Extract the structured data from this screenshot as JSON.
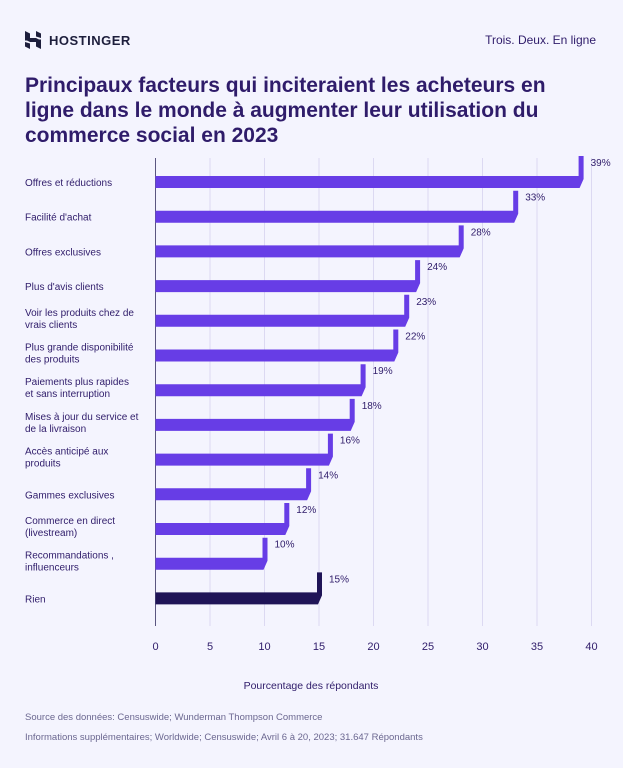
{
  "header": {
    "brand": "HOSTINGER",
    "tagline": "Trois. Deux. En ligne"
  },
  "colors": {
    "bar": "#673de6",
    "highlight": "#1f1457",
    "grid": "#dcd9f2",
    "text": "#2f1c6a"
  },
  "chart_data": {
    "type": "bar",
    "orientation": "horizontal",
    "title": "Principaux facteurs qui inciteraient les acheteurs en ligne dans le monde à augmenter leur utilisation du commerce social en 2023",
    "xlabel": "Pourcentage des répondants",
    "xlim": [
      0,
      40
    ],
    "xticks": [
      "0",
      "5",
      "10",
      "15",
      "20",
      "25",
      "30",
      "35",
      "40"
    ],
    "grid": true,
    "categories": [
      [
        "Offres et réductions"
      ],
      [
        "Facilité d'achat"
      ],
      [
        "Offres exclusives"
      ],
      [
        "Plus d'avis clients"
      ],
      [
        "Voir les produits chez de",
        "vrais clients"
      ],
      [
        "Plus grande disponibilité",
        "des produits"
      ],
      [
        "Paiements plus rapides",
        "et sans interruption"
      ],
      [
        "Mises à jour du service et",
        "de la livraison"
      ],
      [
        "Accès anticipé aux",
        "produits"
      ],
      [
        "Gammes exclusives"
      ],
      [
        "Commerce en direct",
        "(livestream)"
      ],
      [
        "Recommandations ,",
        "influenceurs"
      ],
      [
        "Rien"
      ]
    ],
    "values": [
      39,
      33,
      28,
      24,
      23,
      22,
      19,
      18,
      16,
      14,
      12,
      10,
      15
    ],
    "data_labels": [
      "39%",
      "33%",
      "28%",
      "24%",
      "23%",
      "22%",
      "19%",
      "18%",
      "16%",
      "14%",
      "12%",
      "10%",
      "15%"
    ]
  },
  "footer": {
    "source": "Source des données: Censuswide; Wunderman Thompson Commerce",
    "info": "Informations supplémentaires; Worldwide; Censuswide; Avril 6 à 20, 2023; 31.647 Répondants"
  }
}
